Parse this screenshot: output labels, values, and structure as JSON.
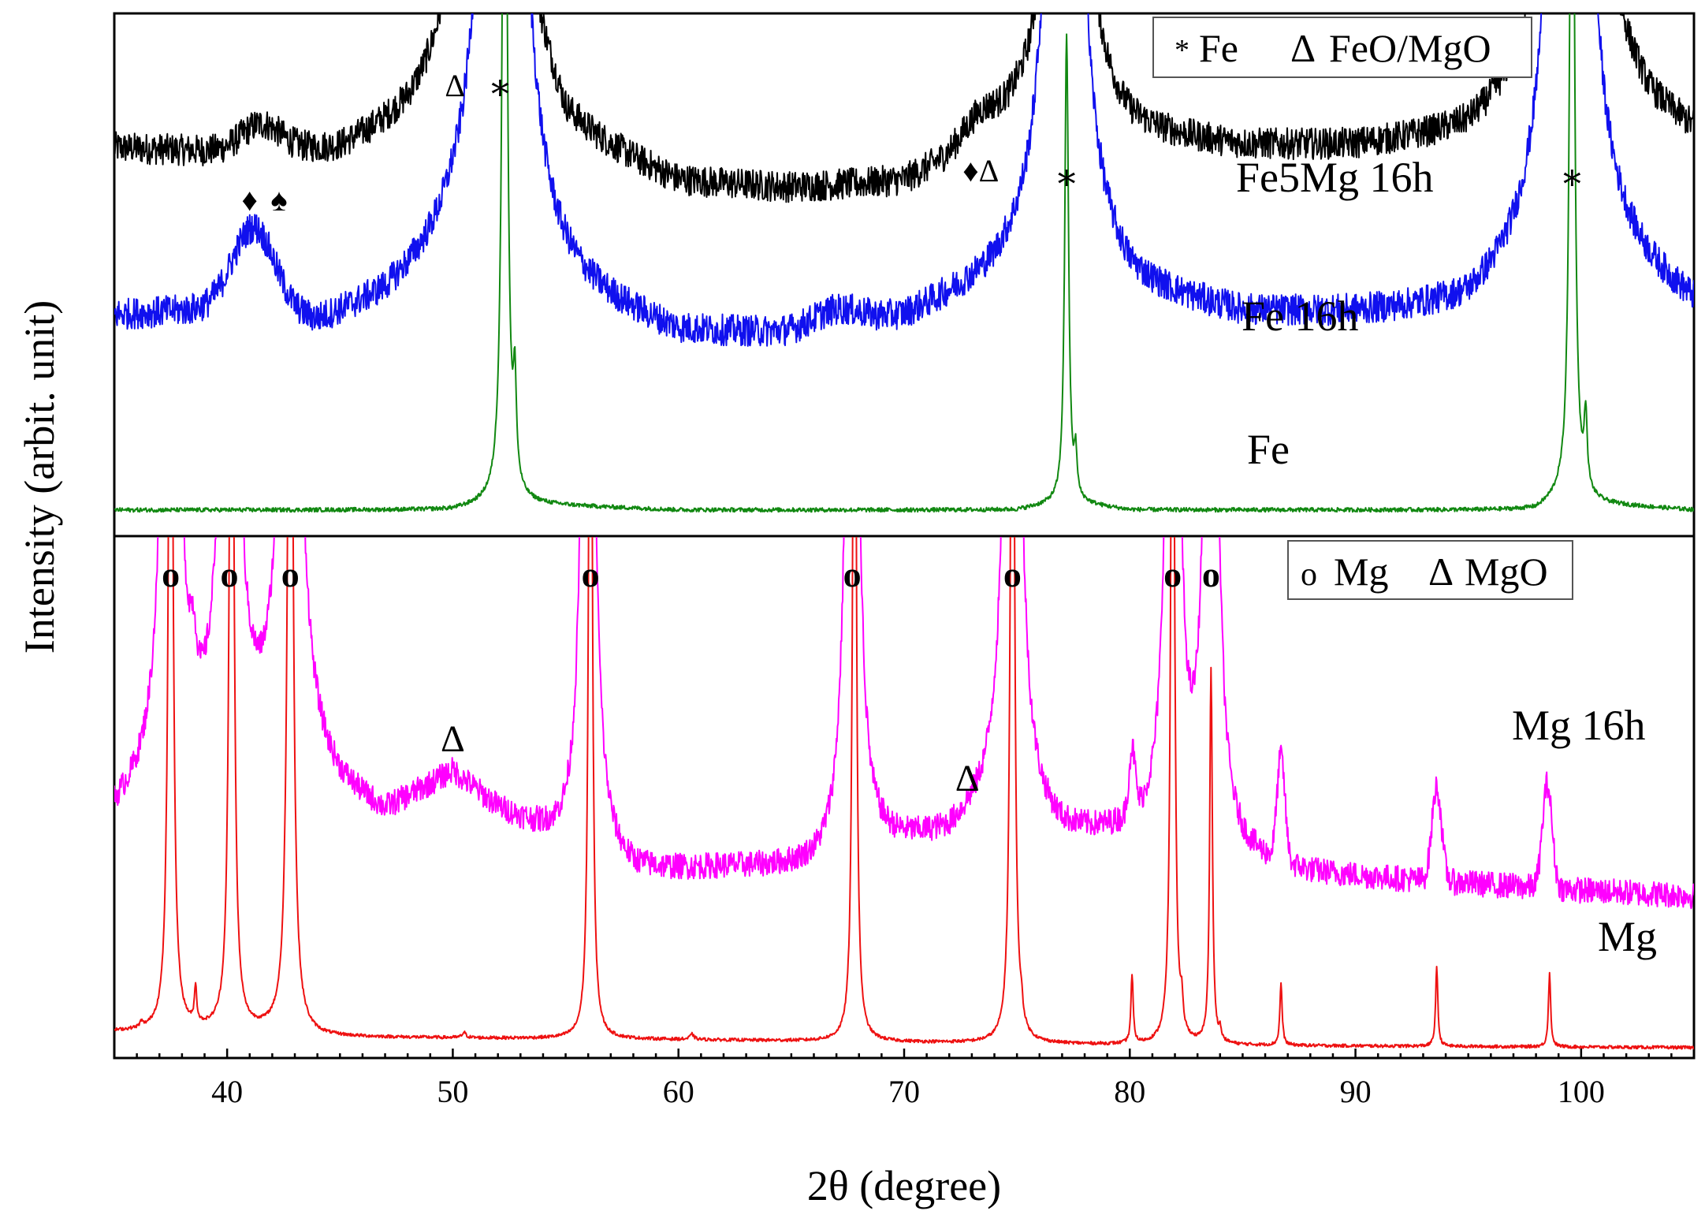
{
  "chart_data": {
    "type": "line",
    "xlabel": "2θ (degree)",
    "ylabel": "Intensity (arbit. unit)",
    "xlim": [
      35,
      105
    ],
    "x_ticks": [
      40,
      50,
      60,
      70,
      80,
      90,
      100
    ],
    "x_tick_labels": [
      "40",
      "50",
      "60",
      "70",
      "80",
      "90",
      "100"
    ],
    "panels": [
      {
        "name": "top",
        "legend": {
          "text_1": "Fe",
          "symbol_1": "*",
          "text_2": "FeO/MgO",
          "symbol_2": "Δ",
          "position": "top-right"
        },
        "series": [
          {
            "name": "Fe5Mg 16h",
            "color": "#000000",
            "baseline": 0.7,
            "noise": 0.03,
            "background": [
              [
                35,
                0.74
              ],
              [
                40,
                0.73
              ],
              [
                45,
                0.73
              ],
              [
                48,
                0.78
              ],
              [
                50,
                0.84
              ],
              [
                51,
                0.9
              ],
              [
                53,
                0.95
              ],
              [
                55,
                0.76
              ],
              [
                60,
                0.67
              ],
              [
                65,
                0.66
              ],
              [
                70,
                0.67
              ],
              [
                73,
                0.73
              ],
              [
                75,
                0.78
              ],
              [
                78,
                0.8
              ],
              [
                80,
                0.76
              ],
              [
                85,
                0.74
              ],
              [
                90,
                0.74
              ],
              [
                95,
                0.76
              ],
              [
                98,
                0.82
              ],
              [
                101,
                0.9
              ],
              [
                103,
                0.8
              ],
              [
                105,
                0.76
              ]
            ],
            "bumps": [
              [
                41.5,
                0.05,
                1.2
              ],
              [
                73.3,
                0.04,
                1.0
              ]
            ],
            "peaks": [
              [
                51.5,
                4.0,
                0.45
              ],
              [
                77.2,
                3.0,
                0.4
              ],
              [
                99.5,
                4.0,
                0.45
              ]
            ]
          },
          {
            "name": "Fe 16h",
            "color": "#1010ee",
            "baseline": 0.4,
            "noise": 0.03,
            "background": [
              [
                35,
                0.42
              ],
              [
                40,
                0.43
              ],
              [
                44,
                0.4
              ],
              [
                47,
                0.44
              ],
              [
                50,
                0.52
              ],
              [
                55,
                0.45
              ],
              [
                60,
                0.38
              ],
              [
                65,
                0.38
              ],
              [
                70,
                0.41
              ],
              [
                74,
                0.48
              ],
              [
                77,
                0.56
              ],
              [
                80,
                0.46
              ],
              [
                85,
                0.42
              ],
              [
                90,
                0.42
              ],
              [
                95,
                0.43
              ],
              [
                99,
                0.53
              ],
              [
                102,
                0.5
              ],
              [
                105,
                0.43
              ]
            ],
            "bumps": [
              [
                41.2,
                0.16,
                1.3
              ],
              [
                67,
                0.03,
                1.5
              ]
            ],
            "peaks": [
              [
                52.2,
                3.0,
                0.6
              ],
              [
                77.1,
                2.5,
                0.5
              ],
              [
                99.5,
                3.0,
                0.55
              ]
            ]
          },
          {
            "name": "Fe",
            "color": "#118811",
            "baseline": 0.05,
            "noise": 0.004,
            "background": [
              [
                35,
                0.05
              ],
              [
                50,
                0.05
              ],
              [
                51.5,
                0.06
              ],
              [
                53.5,
                0.06
              ],
              [
                60,
                0.05
              ],
              [
                75,
                0.05
              ],
              [
                76.5,
                0.06
              ],
              [
                78,
                0.06
              ],
              [
                80,
                0.05
              ],
              [
                98,
                0.05
              ],
              [
                99,
                0.07
              ],
              [
                101,
                0.06
              ],
              [
                105,
                0.05
              ]
            ],
            "bumps": [],
            "peaks": [
              [
                52.3,
                1.8,
                0.12
              ],
              [
                52.75,
                0.18,
                0.08
              ],
              [
                77.2,
                0.9,
                0.1
              ],
              [
                77.6,
                0.08,
                0.07
              ],
              [
                99.6,
                1.8,
                0.11
              ],
              [
                100.2,
                0.14,
                0.08
              ]
            ]
          }
        ],
        "series_labels": [
          "Fe5Mg 16h",
          "Fe 16h",
          "Fe"
        ],
        "annotations": [
          {
            "text": "Δ",
            "x": 50.1
          },
          {
            "text": "∗",
            "x": 52.1
          },
          {
            "text": "♦",
            "x": 41.0
          },
          {
            "text": "♠",
            "x": 42.3
          },
          {
            "text": "♦Δ",
            "x": 73.4
          },
          {
            "text": "∗",
            "x": 77.2
          },
          {
            "text": "∗",
            "x": 99.6
          }
        ]
      },
      {
        "name": "bottom",
        "legend": {
          "text_1": "Mg",
          "symbol_1": "o",
          "text_2": "MgO",
          "symbol_2": "Δ",
          "position": "top-right"
        },
        "series": [
          {
            "name": "Mg 16h",
            "color": "#ff00ff",
            "baseline": 0.5,
            "noise": 0.025,
            "background": [
              [
                35,
                0.46
              ],
              [
                37,
                0.52
              ],
              [
                39,
                0.55
              ],
              [
                41,
                0.56
              ],
              [
                43,
                0.56
              ],
              [
                45,
                0.5
              ],
              [
                47,
                0.46
              ],
              [
                50,
                0.54
              ],
              [
                52,
                0.47
              ],
              [
                55,
                0.4
              ],
              [
                58,
                0.35
              ],
              [
                62,
                0.36
              ],
              [
                66,
                0.36
              ],
              [
                69,
                0.4
              ],
              [
                72,
                0.42
              ],
              [
                74,
                0.48
              ],
              [
                77,
                0.42
              ],
              [
                80,
                0.42
              ],
              [
                84,
                0.38
              ],
              [
                88,
                0.35
              ],
              [
                92,
                0.34
              ],
              [
                96,
                0.33
              ],
              [
                100,
                0.32
              ],
              [
                105,
                0.31
              ]
            ],
            "bumps": [
              [
                38.5,
                0.08,
                0.2
              ],
              [
                80.1,
                0.12,
                0.2
              ],
              [
                86.7,
                0.2,
                0.25
              ],
              [
                93.6,
                0.18,
                0.3
              ],
              [
                98.5,
                0.2,
                0.3
              ]
            ],
            "peaks": [
              [
                37.5,
                2.0,
                0.3
              ],
              [
                40.1,
                2.0,
                0.3
              ],
              [
                42.8,
                2.0,
                0.35
              ],
              [
                56.0,
                2.0,
                0.25
              ],
              [
                67.7,
                2.0,
                0.25
              ],
              [
                74.8,
                2.0,
                0.3
              ],
              [
                81.9,
                2.0,
                0.25
              ],
              [
                83.6,
                2.0,
                0.25
              ]
            ]
          },
          {
            "name": "Mg",
            "color": "#ee1111",
            "baseline": 0.04,
            "noise": 0.003,
            "background": [
              [
                35,
                0.05
              ],
              [
                42,
                0.05
              ],
              [
                44,
                0.04
              ],
              [
                60,
                0.035
              ],
              [
                80,
                0.025
              ],
              [
                105,
                0.02
              ]
            ],
            "bumps": [],
            "peaks": [
              [
                37.5,
                2.0,
                0.1
              ],
              [
                40.2,
                2.0,
                0.1
              ],
              [
                42.8,
                2.0,
                0.12
              ],
              [
                56.1,
                2.0,
                0.08
              ],
              [
                67.8,
                2.0,
                0.08
              ],
              [
                74.8,
                2.0,
                0.09
              ],
              [
                81.9,
                2.0,
                0.08
              ],
              [
                83.6,
                0.72,
                0.07
              ],
              [
                36.2,
                0.01,
                0.06
              ],
              [
                38.6,
                0.07,
                0.06
              ],
              [
                50.5,
                0.01,
                0.1
              ],
              [
                60.6,
                0.01,
                0.1
              ],
              [
                75.2,
                0.03,
                0.06
              ],
              [
                80.1,
                0.13,
                0.06
              ],
              [
                82.3,
                0.05,
                0.06
              ],
              [
                84.0,
                0.02,
                0.06
              ],
              [
                86.7,
                0.12,
                0.06
              ],
              [
                93.6,
                0.15,
                0.06
              ],
              [
                98.6,
                0.14,
                0.06
              ]
            ]
          }
        ],
        "series_labels": [
          "Mg 16h",
          "Mg"
        ],
        "peak_markers": {
          "symbol": "o",
          "x": [
            37.5,
            40.1,
            42.8,
            56.1,
            67.7,
            74.8,
            81.9,
            83.6
          ]
        },
        "annotations": [
          {
            "text": "Δ",
            "x": 50.0
          },
          {
            "text": "Δ",
            "x": 72.8
          }
        ]
      }
    ]
  }
}
